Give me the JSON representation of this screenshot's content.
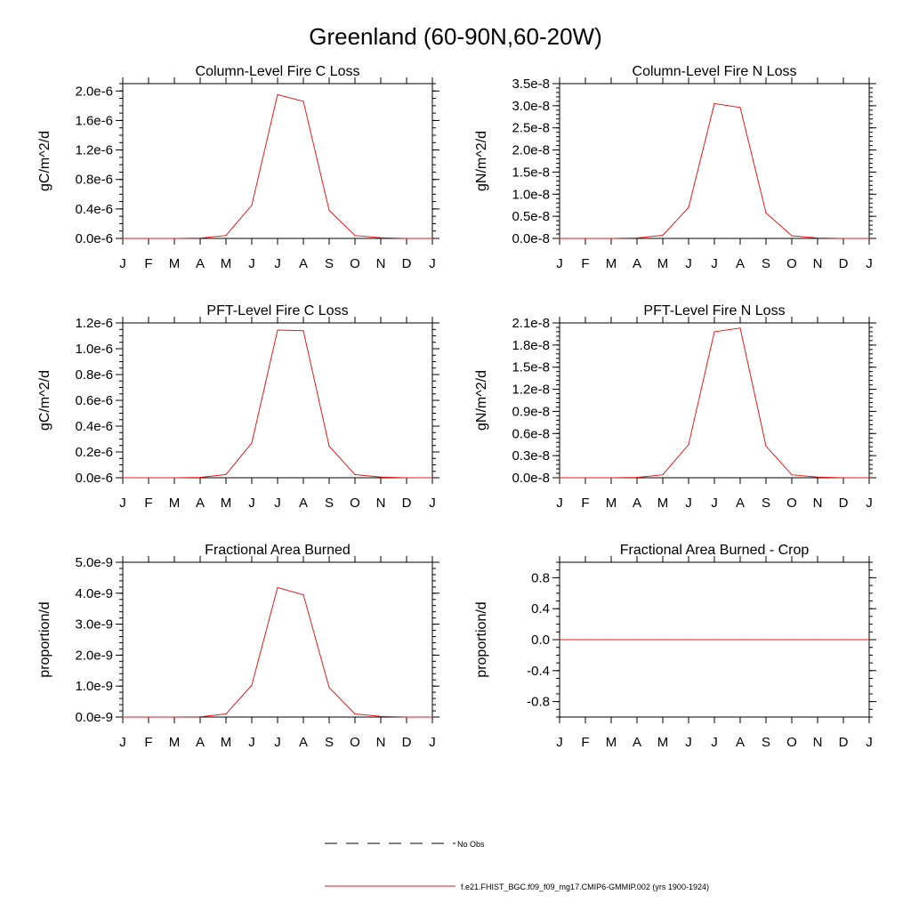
{
  "figure": {
    "title": "Greenland (60-90N,60-20W)"
  },
  "legend": {
    "entries": [
      {
        "label": "No Obs",
        "style": "dashed",
        "color": "#000000"
      },
      {
        "label": "f.e21.FHIST_BGC.f09_f09_mg17.CMIP6-GMMIP.002 (yrs 1900-1924)",
        "style": "solid",
        "color": "#e41a1c"
      }
    ]
  },
  "colors": {
    "series_line": "#e41a1c",
    "axis": "#000000",
    "background": "#ffffff"
  },
  "chart_data": [
    {
      "type": "line",
      "title": "Column-Level Fire C Loss",
      "ylabel": "gC/m^2/d",
      "xlabel": "",
      "categories": [
        "J",
        "F",
        "M",
        "A",
        "M",
        "J",
        "J",
        "A",
        "S",
        "O",
        "N",
        "D",
        "J"
      ],
      "ylim": [
        0,
        2.1e-06
      ],
      "yticks": [
        0,
        4e-07,
        8e-07,
        1.2e-06,
        1.6e-06,
        2e-06
      ],
      "ytick_labels": [
        "0.0e-6",
        "0.4e-6",
        "0.8e-6",
        "1.2e-6",
        "1.6e-6",
        "2.0e-6"
      ],
      "yminor_step": 1e-07,
      "series": [
        {
          "name": "f.e21.FHIST_BGC.f09_f09_mg17.CMIP6-GMMIP.002 (yrs 1900-1924)",
          "values": [
            0,
            0,
            0,
            5e-09,
            4e-08,
            4.5e-07,
            1.95e-06,
            1.86e-06,
            3.8e-07,
            4e-08,
            1e-08,
            0,
            0
          ]
        }
      ]
    },
    {
      "type": "line",
      "title": "Column-Level Fire N Loss",
      "ylabel": "gN/m^2/d",
      "xlabel": "",
      "categories": [
        "J",
        "F",
        "M",
        "A",
        "M",
        "J",
        "J",
        "A",
        "S",
        "O",
        "N",
        "D",
        "J"
      ],
      "ylim": [
        0,
        3.5e-08
      ],
      "yticks": [
        0,
        5e-09,
        1e-08,
        1.5e-08,
        2e-08,
        2.5e-08,
        3e-08,
        3.5e-08
      ],
      "ytick_labels": [
        "0.0e-8",
        "0.5e-8",
        "1.0e-8",
        "1.5e-8",
        "2.0e-8",
        "2.5e-8",
        "3.0e-8",
        "3.5e-8"
      ],
      "yminor_step": 1e-09,
      "series": [
        {
          "name": "f.e21.FHIST_BGC.f09_f09_mg17.CMIP6-GMMIP.002 (yrs 1900-1924)",
          "values": [
            0,
            0,
            0,
            1e-10,
            7e-10,
            7e-09,
            3.05e-08,
            2.96e-08,
            5.8e-09,
            6e-10,
            1e-10,
            0,
            0
          ]
        }
      ]
    },
    {
      "type": "line",
      "title": "PFT-Level Fire C Loss",
      "ylabel": "gC/m^2/d",
      "xlabel": "",
      "categories": [
        "J",
        "F",
        "M",
        "A",
        "M",
        "J",
        "J",
        "A",
        "S",
        "O",
        "N",
        "D",
        "J"
      ],
      "ylim": [
        0,
        1.2e-06
      ],
      "yticks": [
        0,
        2e-07,
        4e-07,
        6e-07,
        8e-07,
        1e-06,
        1.2e-06
      ],
      "ytick_labels": [
        "0.0e-6",
        "0.2e-6",
        "0.4e-6",
        "0.6e-6",
        "0.8e-6",
        "1.0e-6",
        "1.2e-6"
      ],
      "yminor_step": 5e-08,
      "series": [
        {
          "name": "f.e21.FHIST_BGC.f09_f09_mg17.CMIP6-GMMIP.002 (yrs 1900-1924)",
          "values": [
            0,
            0,
            0,
            3e-09,
            2.5e-08,
            2.7e-07,
            1.145e-06,
            1.14e-06,
            2.45e-07,
            2.5e-08,
            5e-09,
            0,
            0
          ]
        }
      ]
    },
    {
      "type": "line",
      "title": "PFT-Level Fire N Loss",
      "ylabel": "gN/m^2/d",
      "xlabel": "",
      "categories": [
        "J",
        "F",
        "M",
        "A",
        "M",
        "J",
        "J",
        "A",
        "S",
        "O",
        "N",
        "D",
        "J"
      ],
      "ylim": [
        0,
        2.1e-08
      ],
      "yticks": [
        0,
        3e-09,
        6e-09,
        9e-09,
        1.2e-08,
        1.5e-08,
        1.8e-08,
        2.1e-08
      ],
      "ytick_labels": [
        "0.0e-8",
        "0.3e-8",
        "0.6e-8",
        "0.9e-8",
        "1.2e-8",
        "1.5e-8",
        "1.8e-8",
        "2.1e-8"
      ],
      "yminor_step": 6e-10,
      "series": [
        {
          "name": "f.e21.FHIST_BGC.f09_f09_mg17.CMIP6-GMMIP.002 (yrs 1900-1924)",
          "values": [
            0,
            0,
            0,
            5e-11,
            4e-10,
            4.5e-09,
            1.98e-08,
            2.03e-08,
            4.3e-09,
            4e-10,
            1e-10,
            0,
            0
          ]
        }
      ]
    },
    {
      "type": "line",
      "title": "Fractional Area Burned",
      "ylabel": "proportion/d",
      "xlabel": "",
      "categories": [
        "J",
        "F",
        "M",
        "A",
        "M",
        "J",
        "J",
        "A",
        "S",
        "O",
        "N",
        "D",
        "J"
      ],
      "ylim": [
        0,
        5e-09
      ],
      "yticks": [
        0,
        1e-09,
        2e-09,
        3e-09,
        4e-09,
        5e-09
      ],
      "ytick_labels": [
        "0.0e-9",
        "1.0e-9",
        "2.0e-9",
        "3.0e-9",
        "4.0e-9",
        "5.0e-9"
      ],
      "yminor_step": 2e-10,
      "series": [
        {
          "name": "f.e21.FHIST_BGC.f09_f09_mg17.CMIP6-GMMIP.002 (yrs 1900-1924)",
          "values": [
            0,
            0,
            0,
            1e-11,
            1e-10,
            1.03e-09,
            4.18e-09,
            3.95e-09,
            9.5e-10,
            1e-10,
            2e-11,
            0,
            0
          ]
        }
      ]
    },
    {
      "type": "line",
      "title": "Fractional Area Burned - Crop",
      "ylabel": "proportion/d",
      "xlabel": "",
      "categories": [
        "J",
        "F",
        "M",
        "A",
        "M",
        "J",
        "J",
        "A",
        "S",
        "O",
        "N",
        "D",
        "J"
      ],
      "ylim": [
        -1.0,
        1.0
      ],
      "yticks": [
        -0.8,
        -0.4,
        0,
        0.4,
        0.8
      ],
      "ytick_labels": [
        "-0.8",
        "-0.4",
        "0.0",
        "0.4",
        "0.8"
      ],
      "yminor_step": 0.1,
      "series": [
        {
          "name": "f.e21.FHIST_BGC.f09_f09_mg17.CMIP6-GMMIP.002 (yrs 1900-1924)",
          "values": [
            0,
            0,
            0,
            0,
            0,
            0,
            0,
            0,
            0,
            0,
            0,
            0,
            0
          ]
        }
      ]
    }
  ]
}
